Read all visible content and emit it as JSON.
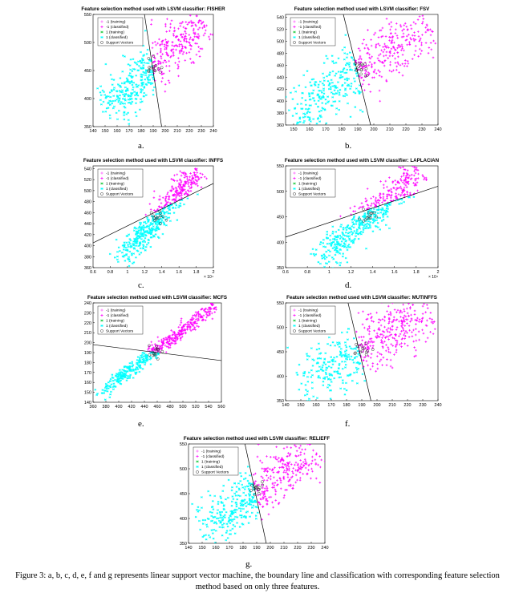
{
  "legend_entries": [
    "-1 (training)",
    "-1 (classified)",
    "1 (training)",
    "1 (classified)",
    "Support Vectors"
  ],
  "colors": {
    "class_neg": "#ff00ff",
    "class_pos": "#00ffff",
    "training_neg": "#ff5bff",
    "training_pos": "#22cc44",
    "support": "#333333",
    "boundary": "#000000"
  },
  "figure_caption": "Figure 3: a, b, c, d, e, f and g represents linear support vector machine, the boundary line and classification with corresponding feature selection method based on only three features.",
  "chart_data": [
    {
      "id": "a",
      "type": "scatter",
      "title": "Feature selection method used with LSVM classifier: FISHER",
      "caption": "a.",
      "xlim": [
        140,
        240
      ],
      "ylim": [
        350,
        550
      ],
      "xticks": [
        140,
        150,
        160,
        170,
        180,
        190,
        200,
        210,
        220,
        230,
        240
      ],
      "xtick_labels": [
        "140",
        "150",
        "160",
        "170",
        "180",
        "190",
        "200",
        "210",
        "220",
        "230",
        "240"
      ],
      "yticks": [
        350,
        400,
        450,
        500,
        550
      ],
      "ytick_labels": [
        "350",
        "400",
        "450",
        "500",
        "550"
      ],
      "exponent_label": "",
      "legend_position": "top-left",
      "cloud": {
        "x0": 150,
        "y0": 375,
        "x1": 230,
        "y1": 538,
        "width": 16
      },
      "boundary": [
        [
          182,
          560
        ],
        [
          197,
          350
        ]
      ]
    },
    {
      "id": "b",
      "type": "scatter",
      "title": "Feature selection method used with LSVM classifier: FSV",
      "caption": "b.",
      "xlim": [
        145,
        240
      ],
      "ylim": [
        360,
        545
      ],
      "xticks": [
        150,
        160,
        170,
        180,
        190,
        200,
        210,
        220,
        230,
        240
      ],
      "xtick_labels": [
        "150",
        "160",
        "170",
        "180",
        "190",
        "200",
        "210",
        "220",
        "230",
        "240"
      ],
      "yticks": [
        360,
        380,
        400,
        420,
        440,
        460,
        480,
        500,
        520,
        540
      ],
      "ytick_labels": [
        "360",
        "380",
        "400",
        "420",
        "440",
        "460",
        "480",
        "500",
        "520",
        "540"
      ],
      "exponent_label": "",
      "legend_position": "top-left",
      "cloud": {
        "x0": 150,
        "y0": 372,
        "x1": 232,
        "y1": 530,
        "width": 15
      },
      "boundary": [
        [
          181,
          545
        ],
        [
          198,
          360
        ]
      ]
    },
    {
      "id": "c",
      "type": "scatter",
      "title": "Feature selection method used with LSVM classifier: INFFS",
      "caption": "c.",
      "xlim": [
        0.6,
        2.0
      ],
      "ylim": [
        360,
        545
      ],
      "xticks": [
        0.6,
        0.8,
        1.0,
        1.2,
        1.4,
        1.6,
        1.8,
        2.0
      ],
      "xtick_labels": [
        "0.6",
        "0.8",
        "1",
        "1.2",
        "1.4",
        "1.6",
        "1.8",
        "2"
      ],
      "yticks": [
        360,
        380,
        400,
        420,
        440,
        460,
        480,
        500,
        520,
        540
      ],
      "ytick_labels": [
        "360",
        "380",
        "400",
        "420",
        "440",
        "460",
        "480",
        "500",
        "520",
        "540"
      ],
      "exponent_label": "× 10⁴",
      "legend_position": "top-left",
      "cloud": {
        "x0": 0.9,
        "y0": 368,
        "x1": 1.82,
        "y1": 535,
        "width": 0.12
      },
      "boundary": [
        [
          0.6,
          405
        ],
        [
          2.0,
          513
        ]
      ]
    },
    {
      "id": "d",
      "type": "scatter",
      "title": "Feature selection method used with LSVM classifier: LAPLACIAN",
      "caption": "d.",
      "xlim": [
        0.6,
        2.0
      ],
      "ylim": [
        350,
        550
      ],
      "xticks": [
        0.6,
        0.8,
        1.0,
        1.2,
        1.4,
        1.6,
        1.8,
        2.0
      ],
      "xtick_labels": [
        "0.6",
        "0.8",
        "1",
        "1.2",
        "1.4",
        "1.6",
        "1.8",
        "2"
      ],
      "yticks": [
        350,
        400,
        450,
        500,
        550
      ],
      "ytick_labels": [
        "350",
        "400",
        "450",
        "500",
        "550"
      ],
      "exponent_label": "× 10⁴",
      "legend_position": "top-left",
      "cloud": {
        "x0": 0.9,
        "y0": 362,
        "x1": 1.82,
        "y1": 540,
        "width": 0.12
      },
      "boundary": [
        [
          0.6,
          410
        ],
        [
          2.0,
          510
        ]
      ]
    },
    {
      "id": "e",
      "type": "scatter",
      "title": "Feature selection method used with LSVM classifier: MCFS",
      "caption": "e.",
      "xlim": [
        360,
        560
      ],
      "ylim": [
        140,
        240
      ],
      "xticks": [
        360,
        380,
        400,
        420,
        440,
        460,
        480,
        500,
        520,
        540,
        560
      ],
      "xtick_labels": [
        "360",
        "380",
        "400",
        "420",
        "440",
        "460",
        "480",
        "500",
        "520",
        "540",
        "560"
      ],
      "yticks": [
        140,
        150,
        160,
        170,
        180,
        190,
        200,
        210,
        220,
        230,
        240
      ],
      "ytick_labels": [
        "140",
        "150",
        "160",
        "170",
        "180",
        "190",
        "200",
        "210",
        "220",
        "230",
        "240"
      ],
      "exponent_label": "",
      "legend_position": "top-left",
      "cloud": {
        "x0": 368,
        "y0": 148,
        "x1": 548,
        "y1": 236,
        "width": 9
      },
      "boundary": [
        [
          360,
          198
        ],
        [
          560,
          182
        ]
      ]
    },
    {
      "id": "f",
      "type": "scatter",
      "title": "Feature selection method used with LSVM classifier: MUTINFFS",
      "caption": "f.",
      "xlim": [
        140,
        240
      ],
      "ylim": [
        350,
        550
      ],
      "xticks": [
        140,
        150,
        160,
        170,
        180,
        190,
        200,
        210,
        220,
        230,
        240
      ],
      "xtick_labels": [
        "140",
        "150",
        "160",
        "170",
        "180",
        "190",
        "200",
        "210",
        "220",
        "230",
        "240"
      ],
      "yticks": [
        350,
        400,
        450,
        500,
        550
      ],
      "ytick_labels": [
        "350",
        "400",
        "450",
        "500",
        "550"
      ],
      "exponent_label": "",
      "legend_position": "top-left",
      "cloud": {
        "x0": 150,
        "y0": 372,
        "x1": 232,
        "y1": 538,
        "width": 16
      },
      "boundary": [
        [
          181,
          550
        ],
        [
          196,
          350
        ]
      ]
    },
    {
      "id": "g",
      "type": "scatter",
      "title": "Feature selection method used with LSVM classifier: RELIEFF",
      "caption": "g.",
      "xlim": [
        140,
        240
      ],
      "ylim": [
        350,
        550
      ],
      "xticks": [
        140,
        150,
        160,
        170,
        180,
        190,
        200,
        210,
        220,
        230,
        240
      ],
      "xtick_labels": [
        "140",
        "150",
        "160",
        "170",
        "180",
        "190",
        "200",
        "210",
        "220",
        "230",
        "240"
      ],
      "yticks": [
        350,
        400,
        450,
        500,
        550
      ],
      "ytick_labels": [
        "350",
        "400",
        "450",
        "500",
        "550"
      ],
      "exponent_label": "",
      "legend_position": "top-left",
      "cloud": {
        "x0": 150,
        "y0": 370,
        "x1": 232,
        "y1": 540,
        "width": 16
      },
      "boundary": [
        [
          181,
          555
        ],
        [
          197,
          350
        ]
      ]
    }
  ]
}
